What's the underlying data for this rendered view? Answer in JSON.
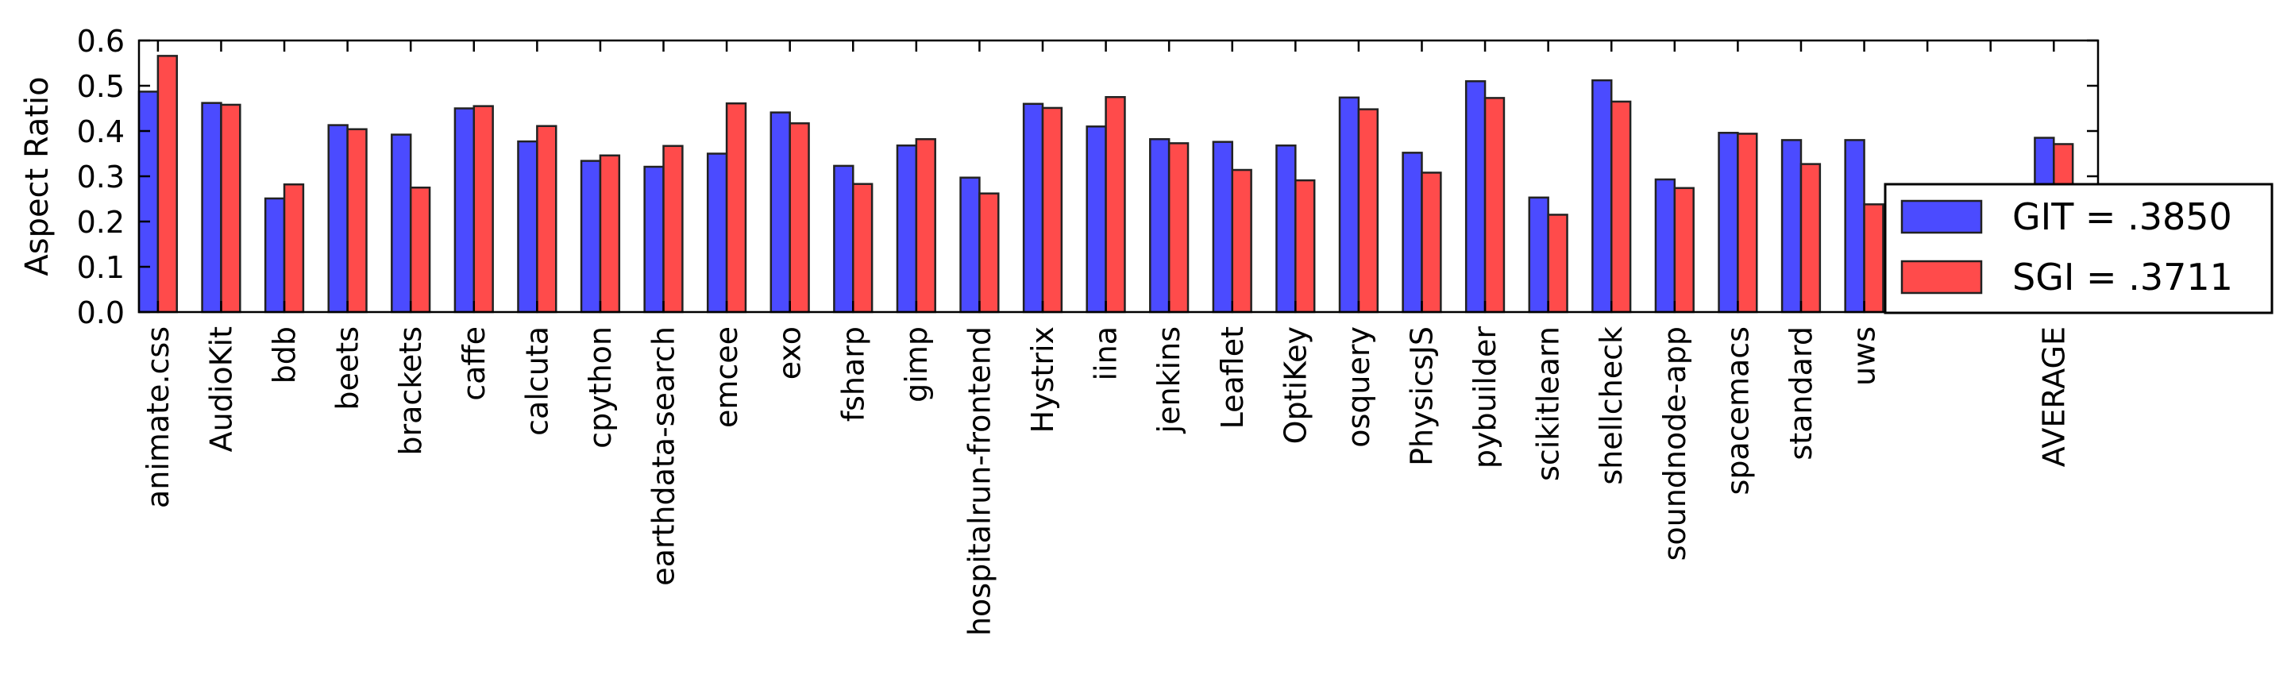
{
  "chart_data": {
    "type": "bar",
    "ylabel": "Aspect Ratio",
    "xlabel": "",
    "ylim": [
      0.0,
      0.6
    ],
    "yticks": [
      "0.0",
      "0.1",
      "0.2",
      "0.3",
      "0.4",
      "0.5",
      "0.6"
    ],
    "grid": false,
    "legend_position": "right",
    "categories": [
      "animate.css",
      "AudioKit",
      "bdb",
      "beets",
      "brackets",
      "caffe",
      "calcuta",
      "cpython",
      "earthdata-search",
      "emcee",
      "exo",
      "fsharp",
      "gimp",
      "hospitalrun-frontend",
      "Hystrix",
      "iina",
      "jenkins",
      "Leaflet",
      "OptiKey",
      "osquery",
      "PhysicsJS",
      "pybuilder",
      "scikitlearn",
      "shellcheck",
      "soundnode-app",
      "spacemacs",
      "standard",
      "uws",
      "",
      "",
      "AVERAGE"
    ],
    "series": [
      {
        "name": "GIT = .3850",
        "color": "#4b4bff",
        "values": [
          0.487,
          0.462,
          0.251,
          0.413,
          0.392,
          0.45,
          0.377,
          0.334,
          0.321,
          0.35,
          0.441,
          0.323,
          0.368,
          0.297,
          0.46,
          0.41,
          0.382,
          0.376,
          0.368,
          0.474,
          0.352,
          0.51,
          0.253,
          0.512,
          0.293,
          0.396,
          0.38,
          0.38,
          null,
          null,
          0.385
        ]
      },
      {
        "name": "SGI = .3711",
        "color": "#ff4b4b",
        "values": [
          0.566,
          0.458,
          0.282,
          0.404,
          0.275,
          0.455,
          0.411,
          0.346,
          0.367,
          0.461,
          0.417,
          0.283,
          0.382,
          0.262,
          0.451,
          0.475,
          0.373,
          0.314,
          0.291,
          0.448,
          0.308,
          0.473,
          0.215,
          0.465,
          0.274,
          0.394,
          0.327,
          0.238,
          null,
          null,
          0.3711
        ]
      }
    ]
  }
}
